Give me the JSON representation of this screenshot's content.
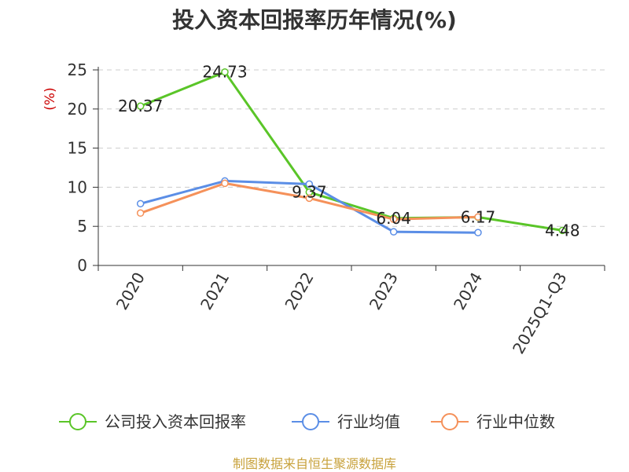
{
  "chart_data": {
    "type": "line",
    "title": "投入资本回报率历年情况(%)",
    "ylabel": "(%)",
    "xlabel": "",
    "categories": [
      "2020",
      "2021",
      "2022",
      "2023",
      "2024",
      "2025Q1-Q3"
    ],
    "ylim": [
      0,
      25
    ],
    "yticks": [
      0,
      5,
      10,
      15,
      20,
      25
    ],
    "grid": "horizontal-dashed",
    "legend_position": "bottom",
    "series": [
      {
        "name": "公司投入资本回报率",
        "color": "#5ac528",
        "values": [
          20.37,
          24.73,
          9.37,
          6.04,
          6.17,
          4.48
        ],
        "labels": [
          "20.37",
          "24.73",
          "9.37",
          "6.04",
          "6.17",
          "4.48"
        ]
      },
      {
        "name": "行业均值",
        "color": "#5b8ee6",
        "values": [
          7.9,
          10.8,
          10.4,
          4.3,
          4.2,
          null
        ]
      },
      {
        "name": "行业中位数",
        "color": "#f5915a",
        "values": [
          6.7,
          10.5,
          8.6,
          5.9,
          6.2,
          null
        ]
      }
    ]
  },
  "footer": {
    "source": "制图数据来自恒生聚源数据库"
  }
}
